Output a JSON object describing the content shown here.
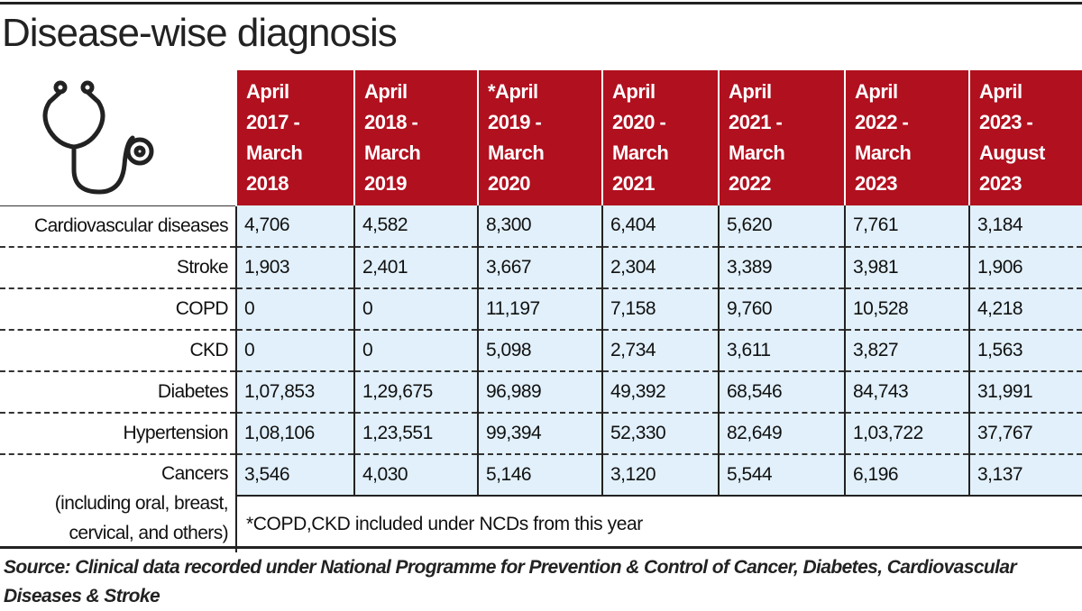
{
  "title": "Disease-wise diagnosis",
  "icon": "stethoscope-icon",
  "colors": {
    "header_bg": "#b1101f",
    "cell_bg": "#e1f0fa"
  },
  "chart_data": {
    "type": "table",
    "title": "Disease-wise diagnosis",
    "columns": [
      "April\n2017 -\nMarch\n2018",
      "April\n2018 -\nMarch\n2019",
      "*April\n2019 -\nMarch\n2020",
      "April\n2020 -\nMarch\n2021",
      "April\n2021 -\nMarch\n2022",
      "April\n2022 -\nMarch\n2023",
      "April\n2023 -\nAugust\n2023"
    ],
    "rows": [
      {
        "label": "Cardiovascular diseases",
        "values": [
          "4,706",
          "4,582",
          "8,300",
          "6,404",
          "5,620",
          "7,761",
          "3,184"
        ]
      },
      {
        "label": "Stroke",
        "values": [
          "1,903",
          "2,401",
          "3,667",
          "2,304",
          "3,389",
          "3,981",
          "1,906"
        ]
      },
      {
        "label": "COPD",
        "values": [
          "0",
          "0",
          "11,197",
          "7,158",
          "9,760",
          "10,528",
          "4,218"
        ]
      },
      {
        "label": "CKD",
        "values": [
          "0",
          "0",
          "5,098",
          "2,734",
          "3,611",
          "3,827",
          "1,563"
        ]
      },
      {
        "label": "Diabetes",
        "values": [
          "1,07,853",
          "1,29,675",
          "96,989",
          "49,392",
          "68,546",
          "84,743",
          "31,991"
        ]
      },
      {
        "label": "Hypertension",
        "values": [
          "1,08,106",
          "1,23,551",
          "99,394",
          "52,330",
          "82,649",
          "1,03,722",
          "37,767"
        ]
      },
      {
        "label": "Cancers\n(including oral, breast,\ncervical, and others)",
        "values": [
          "3,546",
          "4,030",
          "5,146",
          "3,120",
          "5,544",
          "6,196",
          "3,137"
        ]
      }
    ],
    "footnote": "*COPD,CKD included under NCDs from this year"
  },
  "source": "Source: Clinical data recorded under National Programme for Prevention & Control of Cancer, Diabetes, Cardiovascular Diseases & Stroke"
}
